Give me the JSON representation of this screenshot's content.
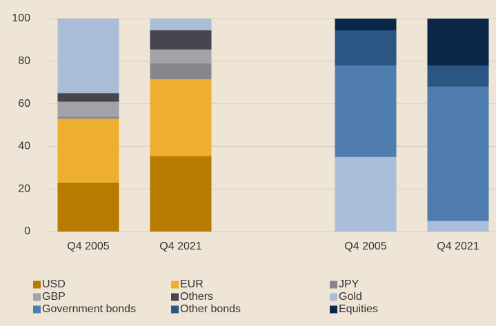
{
  "chart_data": {
    "type": "stacked_bar",
    "categories": [
      "Q4 2005",
      "Q4 2021",
      null,
      "Q4 2005",
      "Q4 2021"
    ],
    "series": [
      {
        "name": "USD",
        "color": "#b97a00",
        "values": [
          23,
          35.5,
          null,
          null,
          null
        ]
      },
      {
        "name": "EUR",
        "color": "#eeae30",
        "values": [
          30,
          36,
          null,
          null,
          null
        ]
      },
      {
        "name": "JPY",
        "color": "#86868c",
        "values": [
          1,
          7.5,
          null,
          null,
          null
        ]
      },
      {
        "name": "GBP",
        "color": "#a2a2a8",
        "values": [
          7,
          6.5,
          null,
          null,
          null
        ]
      },
      {
        "name": "Others",
        "color": "#45454d",
        "values": [
          4,
          9,
          null,
          null,
          null
        ]
      },
      {
        "name": "Gold",
        "color": "#a9bdd8",
        "values": [
          35,
          5.5,
          null,
          35,
          5
        ]
      },
      {
        "name": "Government bonds",
        "color": "#4f7db0",
        "values": [
          null,
          null,
          null,
          43,
          63
        ]
      },
      {
        "name": "Other bonds",
        "color": "#2a5683",
        "values": [
          null,
          null,
          null,
          16.5,
          10
        ]
      },
      {
        "name": "Equities",
        "color": "#0a2748",
        "values": [
          null,
          null,
          null,
          5.5,
          22
        ]
      }
    ],
    "ylim": [
      0,
      100
    ],
    "yticks": [
      0,
      20,
      40,
      60,
      80,
      100
    ],
    "grid": true
  }
}
